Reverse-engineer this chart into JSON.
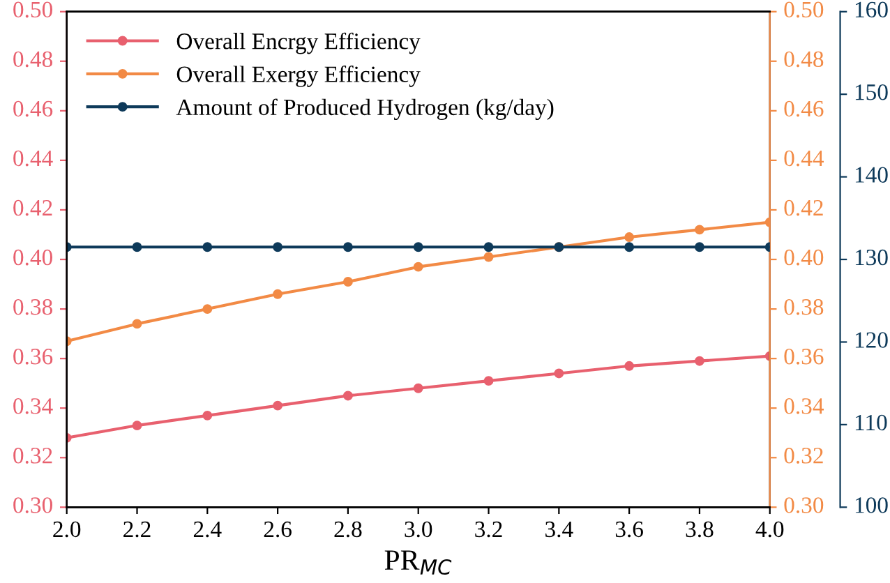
{
  "chart_data": {
    "type": "line",
    "xlabel": "PR$_{MC}$",
    "x": [
      2.0,
      2.2,
      2.4,
      2.6,
      2.8,
      3.0,
      3.2,
      3.4,
      3.6,
      3.8,
      4.0
    ],
    "series": [
      {
        "name": "Overall Encrgy Efficiency",
        "color": "#e8606e",
        "axis": "y",
        "values": [
          0.328,
          0.333,
          0.337,
          0.341,
          0.345,
          0.348,
          0.351,
          0.354,
          0.357,
          0.359,
          0.361
        ]
      },
      {
        "name": "Overall Exergy Efficiency",
        "color": "#f28a45",
        "axis": "y2",
        "values": [
          0.367,
          0.374,
          0.38,
          0.386,
          0.391,
          0.397,
          0.401,
          0.405,
          0.409,
          0.412,
          0.415
        ]
      },
      {
        "name": "Amount of Produced Hydrogen (kg/day)",
        "color": "#0e3a5a",
        "axis": "y3",
        "values": [
          131.5,
          131.5,
          131.5,
          131.5,
          131.5,
          131.5,
          131.5,
          131.5,
          131.5,
          131.5,
          131.5
        ]
      }
    ],
    "xlim": [
      2.0,
      4.0
    ],
    "xticks": [
      {
        "value": 2.0,
        "label": "2.0"
      },
      {
        "value": 2.2,
        "label": "2.2"
      },
      {
        "value": 2.4,
        "label": "2.4"
      },
      {
        "value": 2.6,
        "label": "2.6"
      },
      {
        "value": 2.8,
        "label": "2.8"
      },
      {
        "value": 3.0,
        "label": "3.0"
      },
      {
        "value": 3.2,
        "label": "3.2"
      },
      {
        "value": 3.4,
        "label": "3.4"
      },
      {
        "value": 3.6,
        "label": "3.6"
      },
      {
        "value": 3.8,
        "label": "3.8"
      },
      {
        "value": 4.0,
        "label": "4.0"
      }
    ],
    "ylim": [
      0.3,
      0.5
    ],
    "yticks": [
      {
        "value": 0.3,
        "label": "0.30"
      },
      {
        "value": 0.32,
        "label": "0.32"
      },
      {
        "value": 0.34,
        "label": "0.34"
      },
      {
        "value": 0.36,
        "label": "0.36"
      },
      {
        "value": 0.38,
        "label": "0.38"
      },
      {
        "value": 0.4,
        "label": "0.40"
      },
      {
        "value": 0.42,
        "label": "0.42"
      },
      {
        "value": 0.44,
        "label": "0.44"
      },
      {
        "value": 0.46,
        "label": "0.46"
      },
      {
        "value": 0.48,
        "label": "0.48"
      },
      {
        "value": 0.5,
        "label": "0.50"
      }
    ],
    "y2lim": [
      0.3,
      0.5
    ],
    "y2ticks": [
      {
        "value": 0.3,
        "label": "0.30"
      },
      {
        "value": 0.32,
        "label": "0.32"
      },
      {
        "value": 0.34,
        "label": "0.34"
      },
      {
        "value": 0.36,
        "label": "0.36"
      },
      {
        "value": 0.38,
        "label": "0.38"
      },
      {
        "value": 0.4,
        "label": "0.40"
      },
      {
        "value": 0.42,
        "label": "0.42"
      },
      {
        "value": 0.44,
        "label": "0.44"
      },
      {
        "value": 0.46,
        "label": "0.46"
      },
      {
        "value": 0.48,
        "label": "0.48"
      },
      {
        "value": 0.5,
        "label": "0.50"
      }
    ],
    "y3lim": [
      100,
      160
    ],
    "y3ticks": [
      100,
      110,
      120,
      130,
      140,
      150,
      160
    ],
    "marker": "circle",
    "line_style": "solid",
    "legend": "top left",
    "grid": false
  }
}
